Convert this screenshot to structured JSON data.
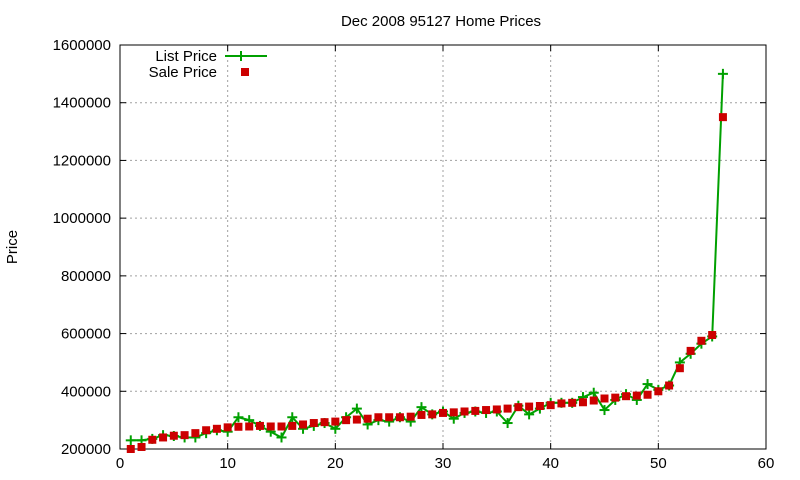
{
  "chart_data": {
    "type": "line",
    "title": "Dec 2008 95127 Home Prices",
    "xlabel": "",
    "ylabel": "Price",
    "xlim": [
      0,
      60
    ],
    "ylim": [
      200000,
      1600000
    ],
    "xticks": [
      0,
      10,
      20,
      30,
      40,
      50,
      60
    ],
    "yticks": [
      200000,
      400000,
      600000,
      800000,
      1000000,
      1200000,
      1400000,
      1600000
    ],
    "grid": true,
    "legend_position": "top-left",
    "x": [
      1,
      2,
      3,
      4,
      5,
      6,
      7,
      8,
      9,
      10,
      11,
      12,
      13,
      14,
      15,
      16,
      17,
      18,
      19,
      20,
      21,
      22,
      23,
      24,
      25,
      26,
      27,
      28,
      29,
      30,
      31,
      32,
      33,
      34,
      35,
      36,
      37,
      38,
      39,
      40,
      41,
      42,
      43,
      44,
      45,
      46,
      47,
      48,
      49,
      50,
      51,
      52,
      53,
      54,
      55,
      56
    ],
    "series": [
      {
        "name": "List Price",
        "style": "line-plus",
        "color": "#00a000",
        "values": [
          230000,
          230000,
          235000,
          248000,
          245000,
          240000,
          240000,
          255000,
          265000,
          260000,
          310000,
          300000,
          280000,
          260000,
          240000,
          310000,
          270000,
          280000,
          290000,
          270000,
          310000,
          340000,
          285000,
          300000,
          295000,
          310000,
          295000,
          345000,
          320000,
          330000,
          305000,
          325000,
          330000,
          325000,
          330000,
          290000,
          350000,
          320000,
          340000,
          360000,
          360000,
          360000,
          380000,
          395000,
          335000,
          370000,
          390000,
          370000,
          425000,
          405000,
          420000,
          500000,
          530000,
          565000,
          590000,
          1500000
        ]
      },
      {
        "name": "Sale Price",
        "style": "squares",
        "color": "#cc0000",
        "values": [
          200000,
          207000,
          232000,
          240000,
          246000,
          248000,
          255000,
          265000,
          270000,
          275000,
          277000,
          278000,
          280000,
          278000,
          278000,
          280000,
          285000,
          290000,
          293000,
          295000,
          300000,
          302000,
          305000,
          310000,
          310000,
          310000,
          312000,
          318000,
          320000,
          325000,
          327000,
          330000,
          332000,
          335000,
          337000,
          340000,
          345000,
          347000,
          349000,
          352000,
          358000,
          360000,
          362000,
          368000,
          375000,
          378000,
          383000,
          385000,
          388000,
          400000,
          420000,
          480000,
          540000,
          575000,
          595000,
          1350000
        ]
      }
    ]
  }
}
